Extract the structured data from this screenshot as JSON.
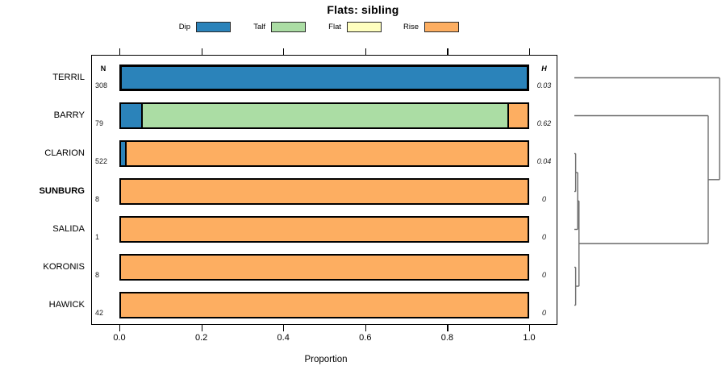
{
  "header": {
    "title": "Flats: sibling"
  },
  "legend": {
    "items": [
      {
        "label": "Dip",
        "color": "#2B83BA"
      },
      {
        "label": "Talf",
        "color": "#ABDDA4"
      },
      {
        "label": "Flat",
        "color": "#FFFFBF"
      },
      {
        "label": "Rise",
        "color": "#FDAE61"
      }
    ]
  },
  "columns": {
    "n_header": "N",
    "h_header": "H"
  },
  "xaxis": {
    "label": "Proportion",
    "ticks": [
      "0.0",
      "0.2",
      "0.4",
      "0.6",
      "0.8",
      "1.0"
    ],
    "range": [
      0,
      1
    ]
  },
  "chart_data": {
    "type": "bar",
    "orientation": "horizontal",
    "stacked": true,
    "title": "Flats: sibling",
    "xlabel": "Proportion",
    "xlim": [
      0,
      1
    ],
    "grid": false,
    "categories": [
      "TERRIL",
      "BARRY",
      "CLARION",
      "SUNBURG",
      "SALIDA",
      "KORONIS",
      "HAWICK"
    ],
    "series": [
      {
        "name": "Dip",
        "color": "#2B83BA",
        "values": [
          1.0,
          0.05,
          0.01,
          0,
          0,
          0,
          0
        ]
      },
      {
        "name": "Talf",
        "color": "#ABDDA4",
        "values": [
          0,
          0.9,
          0,
          0,
          0,
          0,
          0
        ]
      },
      {
        "name": "Flat",
        "color": "#FFFFBF",
        "values": [
          0,
          0,
          0,
          0,
          0,
          0,
          0
        ]
      },
      {
        "name": "Rise",
        "color": "#FDAE61",
        "values": [
          0,
          0.05,
          0.99,
          1.0,
          1.0,
          1.0,
          1.0
        ]
      }
    ],
    "n_values": [
      "308",
      "79",
      "522",
      "8",
      "1",
      "8",
      "42"
    ],
    "h_values": [
      "0.03",
      "0.62",
      "0.04",
      "0",
      "0",
      "0",
      "0"
    ],
    "bold_categories": [
      "SUNBURG"
    ],
    "thick_border_bars": [
      "TERRIL"
    ],
    "dendrogram": {
      "line_color": "#696969",
      "merges": [
        {
          "a": "CLARION",
          "b": "SUNBURG",
          "h": 0.009
        },
        {
          "a": "m1",
          "b": "SALIDA",
          "h": 0.023
        },
        {
          "a": "KORONIS",
          "b": "HAWICK",
          "h": 0.009
        },
        {
          "a": "m2",
          "b": "m3",
          "h": 0.032
        },
        {
          "a": "m4",
          "b": "BARRY",
          "h": 0.922
        },
        {
          "a": "m5",
          "b": "TERRIL",
          "h": 1.0
        }
      ]
    }
  }
}
